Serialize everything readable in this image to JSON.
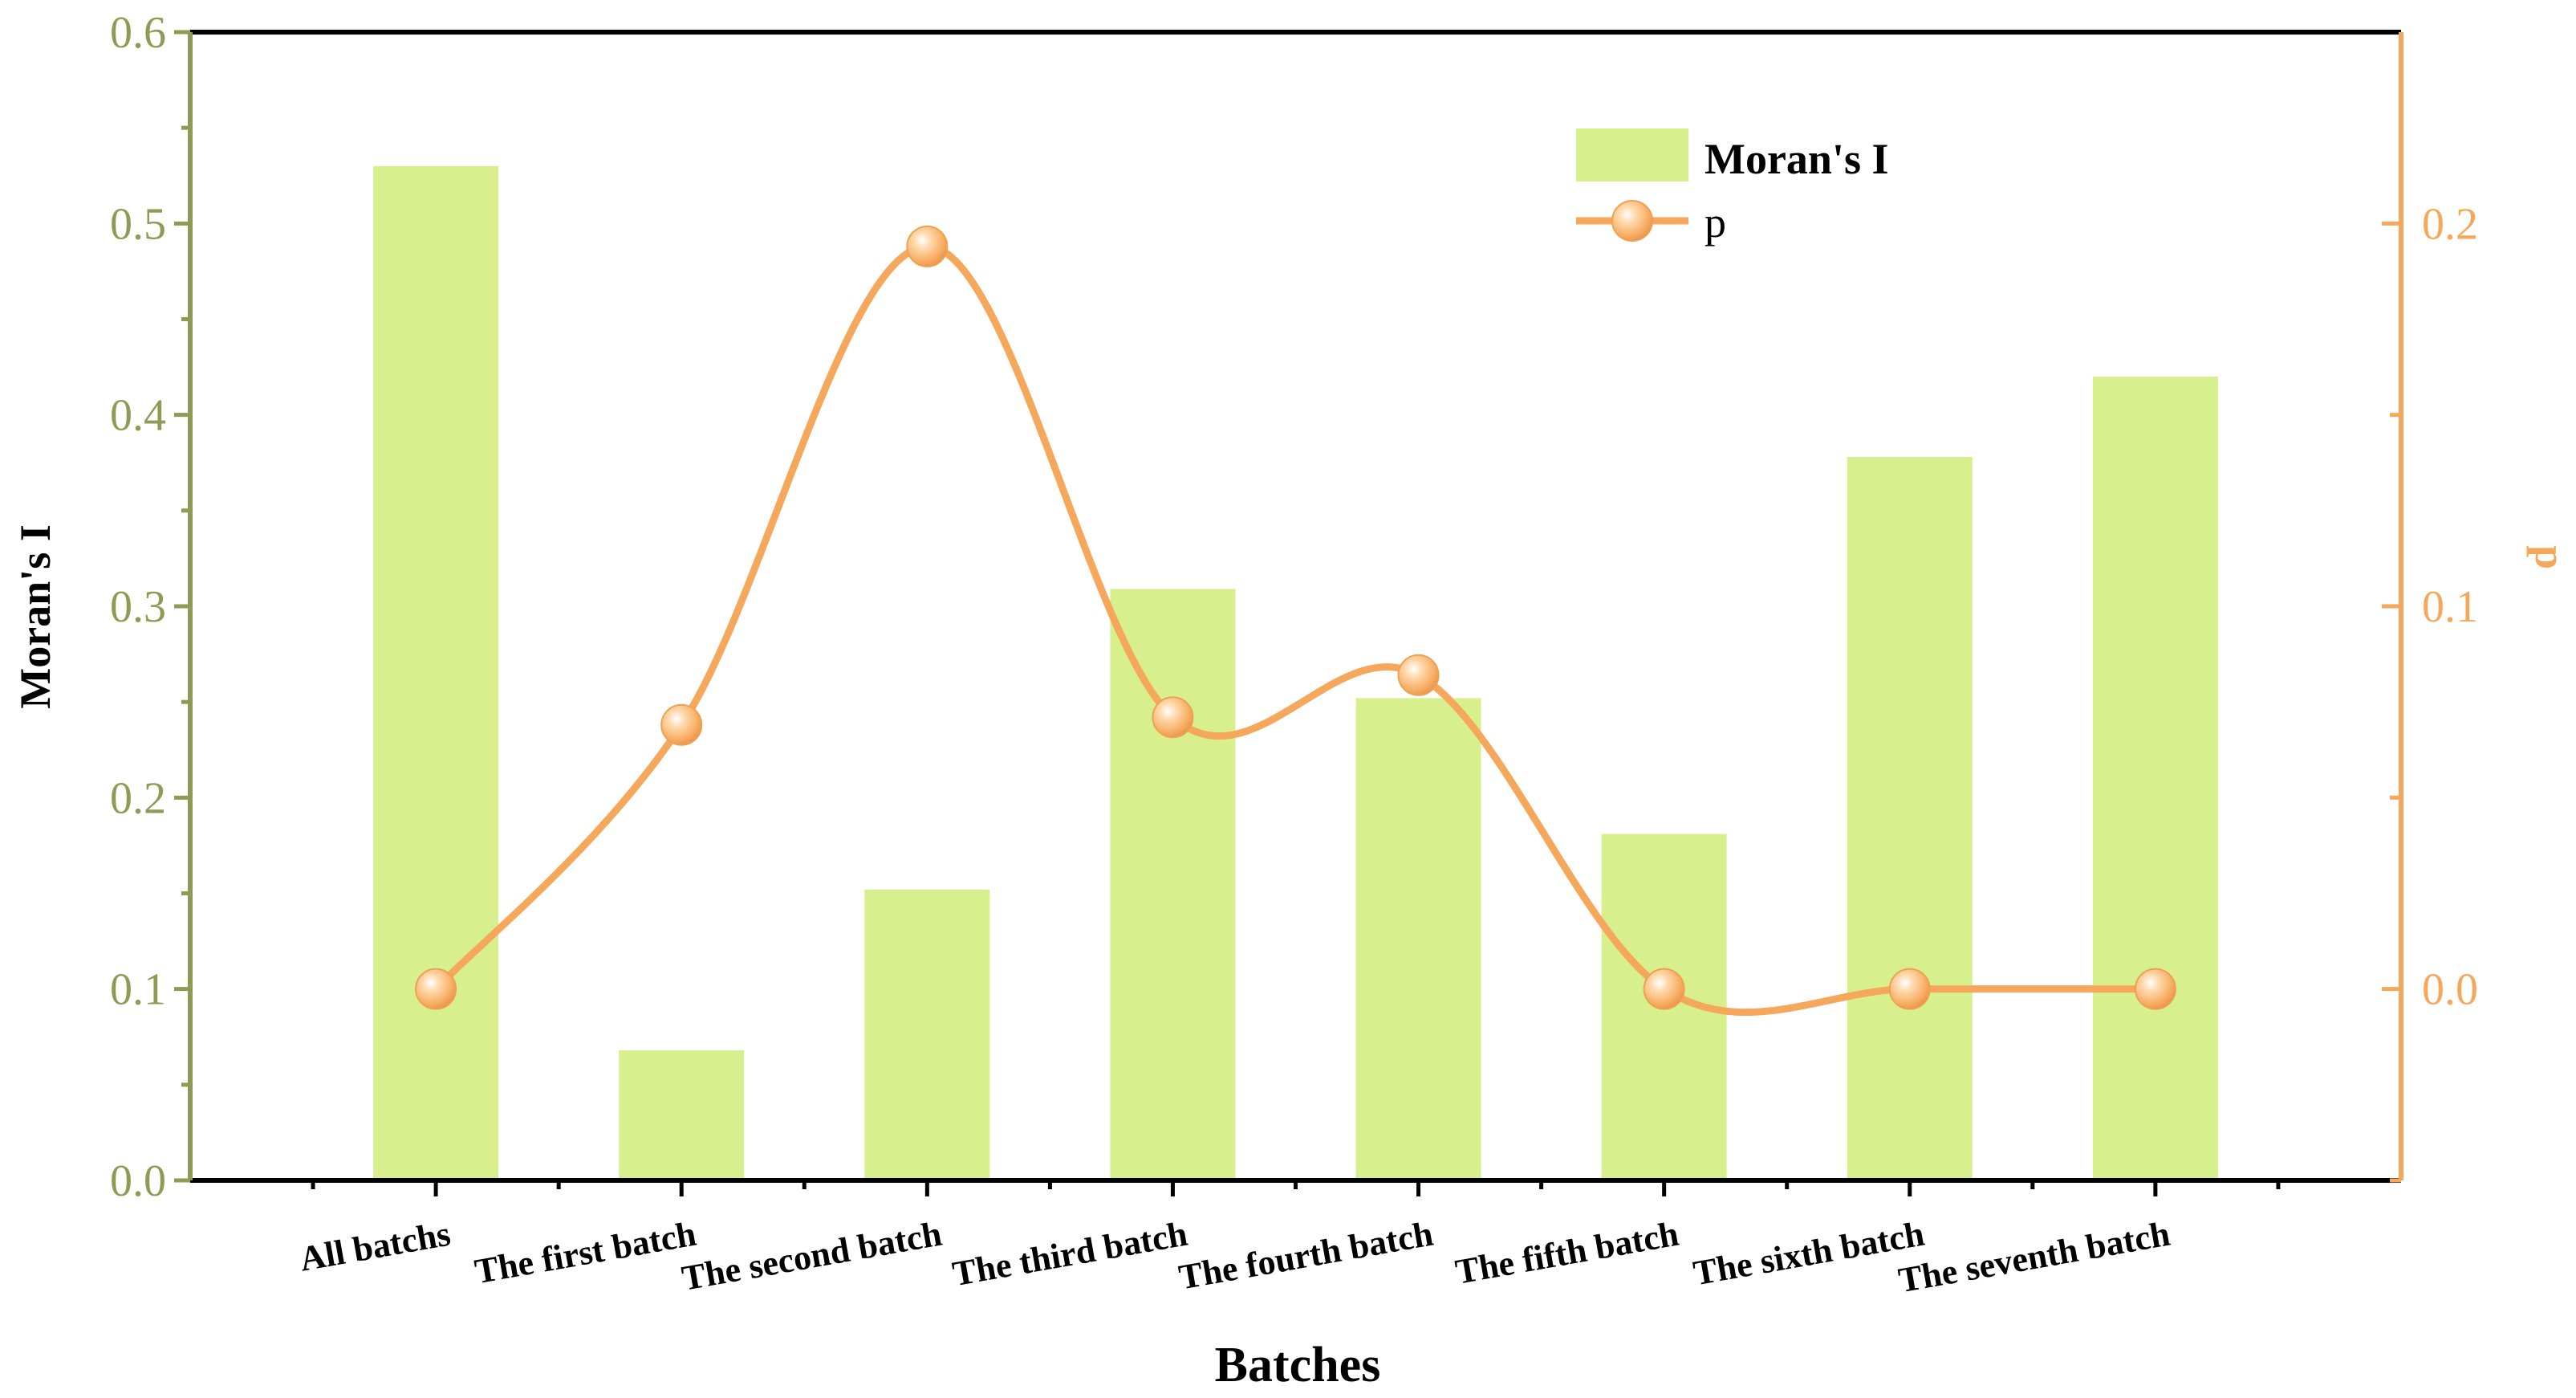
{
  "chart_data": {
    "type": "bar+line",
    "categories": [
      "All batchs",
      "The first batch",
      "The second batch",
      "The third batch",
      "The fourth batch",
      "The fifth batch",
      "The sixth batch",
      "The seventh batch"
    ],
    "series": [
      {
        "name": "Moran's I",
        "type": "bar",
        "axis": "left",
        "values": [
          0.53,
          0.068,
          0.152,
          0.309,
          0.252,
          0.181,
          0.378,
          0.42
        ]
      },
      {
        "name": "p",
        "type": "line",
        "axis": "right",
        "values": [
          0.0,
          0.069,
          0.194,
          0.071,
          0.082,
          0.0,
          0.0,
          0.0
        ]
      }
    ],
    "xlabel": "Batches",
    "ylabel": "Moran's I",
    "y2label": "p",
    "ylim": [
      0,
      0.6
    ],
    "y2lim": [
      -0.05,
      0.25
    ],
    "yticks": [
      "0.0",
      "0.1",
      "0.2",
      "0.3",
      "0.4",
      "0.5",
      "0.6"
    ],
    "y2ticks": [
      "0.0",
      "0.1",
      "0.2"
    ],
    "y2tick_values": [
      0.0,
      0.1,
      0.2
    ],
    "legend": {
      "position": "top-right",
      "entries": [
        "Moran's I",
        "p"
      ]
    },
    "colors": {
      "bar": "#d8ef8d",
      "line": "#f5a85c",
      "left_axis": "#8f9a55",
      "right_axis": "#f5a85c"
    }
  }
}
